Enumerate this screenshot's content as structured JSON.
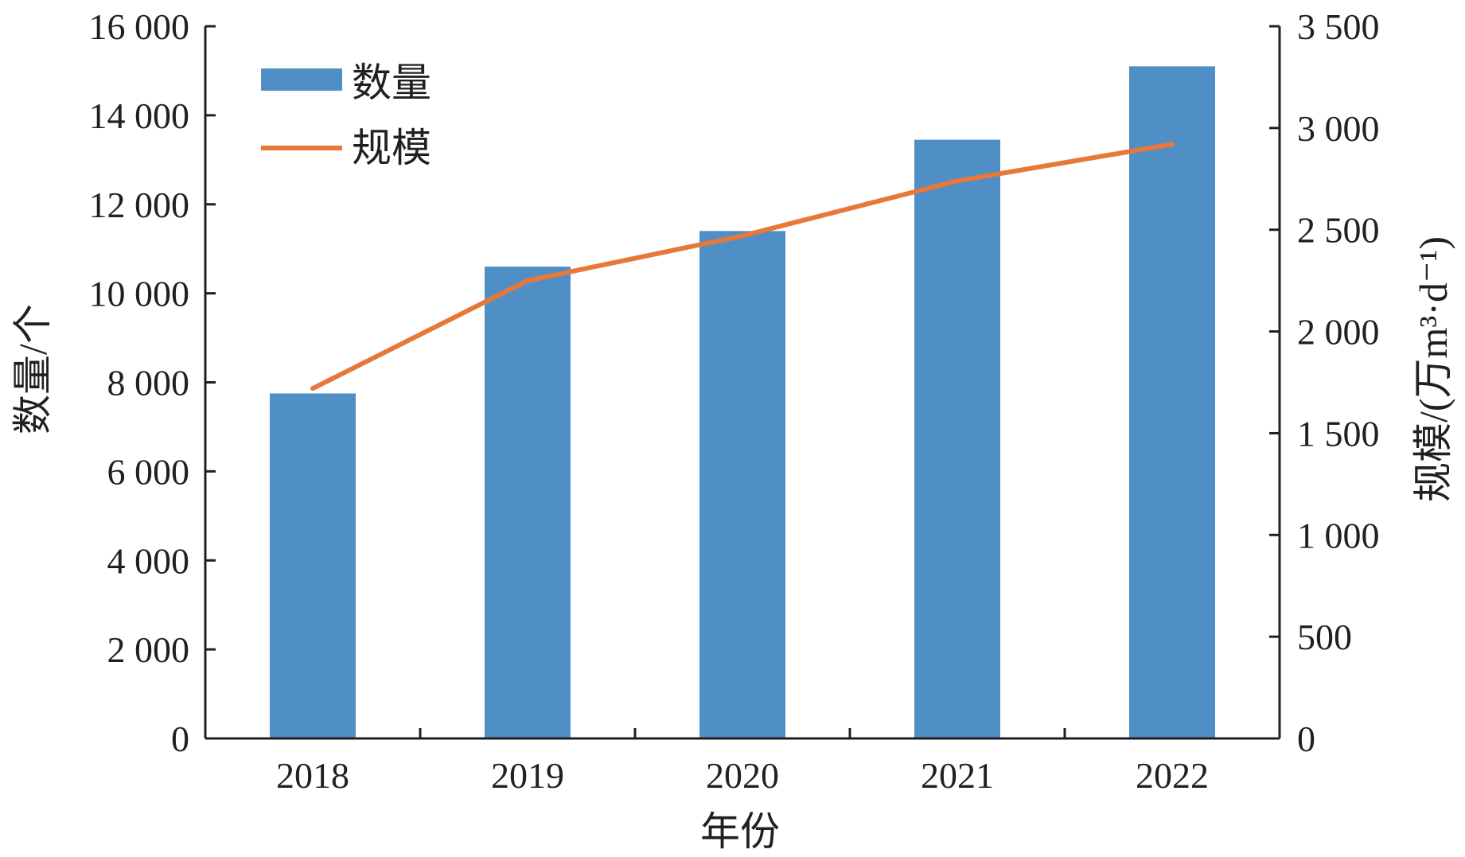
{
  "chart_data": {
    "type": "bar",
    "categories": [
      "2018",
      "2019",
      "2020",
      "2021",
      "2022"
    ],
    "series": [
      {
        "name": "数量",
        "type": "bar",
        "axis": "left",
        "color": "#4f8fc6",
        "values": [
          7750,
          10600,
          11400,
          13450,
          15100
        ]
      },
      {
        "name": "规模",
        "type": "line",
        "axis": "right",
        "color": "#e8773a",
        "values": [
          1720,
          2250,
          2470,
          2740,
          2920
        ]
      }
    ],
    "xlabel": "年份",
    "ylabel_left": "数量/个",
    "ylabel_right": "规模/(万m³·d⁻¹)",
    "ylim_left": [
      0,
      16000
    ],
    "ylim_right": [
      0,
      3500
    ],
    "yticks_left": [
      "0",
      "2 000",
      "4 000",
      "6 000",
      "8 000",
      "10 000",
      "12 000",
      "14 000",
      "16 000"
    ],
    "yticks_right": [
      "0",
      "500",
      "1 000",
      "1 500",
      "2 000",
      "2 500",
      "3 000",
      "3 500"
    ],
    "grid": false,
    "legend_position": "top-left"
  }
}
